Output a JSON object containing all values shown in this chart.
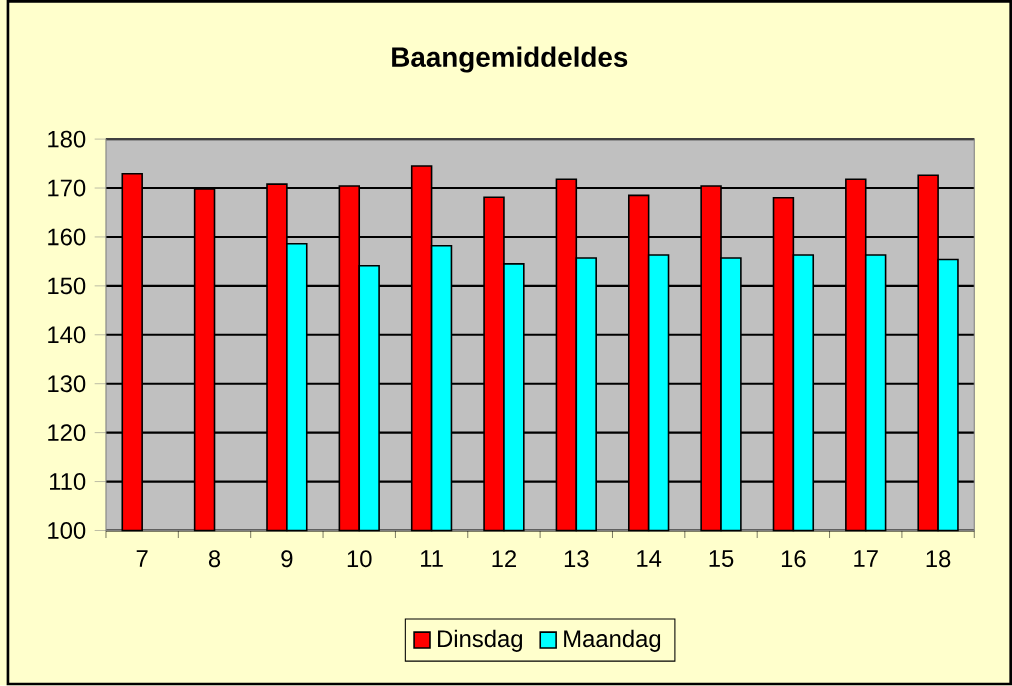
{
  "chart_data": {
    "type": "bar",
    "title": "Baangemiddeldes",
    "categories": [
      "7",
      "8",
      "9",
      "10",
      "11",
      "12",
      "13",
      "14",
      "15",
      "16",
      "17",
      "18"
    ],
    "series": [
      {
        "name": "Dinsdag",
        "color": "#ff0000",
        "values": [
          172.9,
          169.8,
          170.8,
          170.4,
          174.5,
          168.1,
          171.8,
          168.5,
          170.4,
          168.0,
          171.8,
          172.6
        ]
      },
      {
        "name": "Maandag",
        "color": "#00ffff",
        "values": [
          null,
          null,
          158.6,
          154.1,
          158.2,
          154.5,
          155.7,
          156.3,
          155.7,
          156.3,
          156.3,
          155.4
        ]
      }
    ],
    "ylim": [
      100,
      180
    ],
    "yticks": [
      100,
      110,
      120,
      130,
      140,
      150,
      160,
      170,
      180
    ],
    "grid": "y",
    "legend": "bottom"
  }
}
